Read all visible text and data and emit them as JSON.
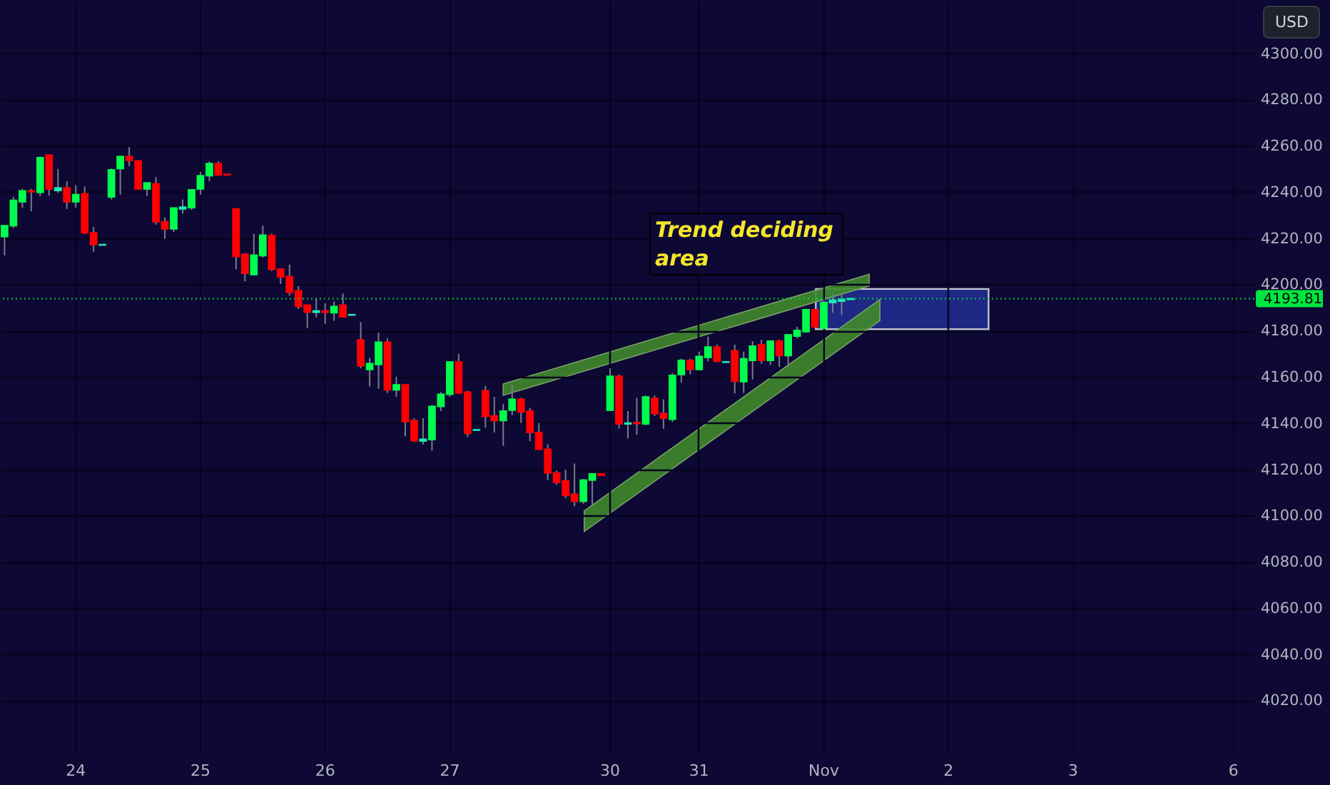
{
  "chart_data": {
    "type": "candlestick",
    "categories": [
      null,
      null,
      null,
      null,
      null,
      null,
      null,
      null,
      "24",
      null,
      null,
      null,
      null,
      null,
      null,
      null,
      null,
      null,
      null,
      null,
      null,
      null,
      "25",
      null,
      null,
      null,
      null,
      null,
      null,
      null,
      null,
      null,
      null,
      null,
      null,
      null,
      "26",
      null,
      null,
      null,
      null,
      null,
      null,
      null,
      null,
      null,
      null,
      null,
      null,
      null,
      "27",
      null,
      null,
      null,
      null,
      null,
      null,
      null,
      null,
      null,
      null,
      null,
      null,
      null,
      null,
      null,
      null,
      null,
      "30",
      null,
      null,
      null,
      null,
      null,
      null,
      null,
      null,
      null,
      "31",
      null,
      null,
      null,
      null,
      null,
      null,
      null,
      null,
      null,
      null,
      null,
      null,
      null,
      "Nov",
      null,
      null,
      null,
      null,
      null,
      null,
      null,
      null,
      null,
      null,
      null,
      null,
      null,
      "2",
      null,
      null,
      null,
      null,
      null,
      null,
      null,
      null,
      null,
      null,
      null,
      null,
      null,
      "3",
      null,
      null,
      null,
      null,
      null,
      null,
      null,
      null,
      null,
      null,
      null,
      null,
      null,
      null,
      null,
      null,
      null,
      "6",
      null,
      null
    ],
    "ohlc": [
      [
        4220.7,
        4225.4,
        4212.5,
        4225.4
      ],
      [
        4225.4,
        4237.8,
        4224.4,
        4236.3
      ],
      [
        4235.7,
        4241.3,
        4233.0,
        4240.4
      ],
      [
        4240.4,
        4241.3,
        4231.6,
        4240.0
      ],
      [
        4239.8,
        4255.3,
        4238.2,
        4254.8
      ],
      [
        4255.9,
        4255.9,
        4238.4,
        4241.3
      ],
      [
        4240.6,
        4249.9,
        4239.6,
        4241.7
      ],
      [
        4241.7,
        4244.6,
        4232.6,
        4235.7
      ],
      [
        4235.7,
        4242.9,
        4233.2,
        4238.8
      ],
      [
        4239.2,
        4242.3,
        4221.7,
        4222.3
      ],
      [
        4222.3,
        4224.8,
        4214.1,
        4217.2
      ],
      [
        4217.2,
        4217.2,
        4217.0,
        4217.0
      ],
      [
        4237.8,
        4250.1,
        4236.7,
        4249.5
      ],
      [
        4250.1,
        4255.3,
        4238.8,
        4255.3
      ],
      [
        4255.3,
        4259.4,
        4251.1,
        4253.6
      ],
      [
        4253.4,
        4253.8,
        4240.9,
        4241.3
      ],
      [
        4241.3,
        4243.9,
        4238.2,
        4243.9
      ],
      [
        4243.5,
        4246.4,
        4225.8,
        4227.1
      ],
      [
        4227.1,
        4228.9,
        4219.7,
        4224.0
      ],
      [
        4224.0,
        4233.0,
        4222.7,
        4233.0
      ],
      [
        4232.6,
        4236.7,
        4230.6,
        4233.4
      ],
      [
        4233.2,
        4240.9,
        4232.2,
        4240.9
      ],
      [
        4241.3,
        4248.7,
        4238.8,
        4247.0
      ],
      [
        4247.0,
        4253.2,
        4244.6,
        4252.2
      ],
      [
        4252.2,
        4253.2,
        4247.0,
        4247.4
      ],
      [
        4247.6,
        4247.6,
        4247.4,
        4247.4
      ],
      [
        4232.6,
        4233.0,
        4206.5,
        4212.0
      ],
      [
        4213.0,
        4213.5,
        4201.3,
        4204.8
      ],
      [
        4204.2,
        4221.9,
        4203.8,
        4212.6
      ],
      [
        4212.4,
        4225.4,
        4211.6,
        4221.3
      ],
      [
        4221.1,
        4221.9,
        4205.8,
        4206.5
      ],
      [
        4206.5,
        4206.9,
        4200.1,
        4203.2
      ],
      [
        4203.4,
        4208.5,
        4195.1,
        4196.6
      ],
      [
        4197.2,
        4199.3,
        4189.4,
        4190.4
      ],
      [
        4191.0,
        4191.0,
        4181.1,
        4187.9
      ],
      [
        4187.9,
        4193.9,
        4185.7,
        4188.5
      ],
      [
        4188.5,
        4191.8,
        4182.8,
        4187.9
      ],
      [
        4187.7,
        4192.5,
        4184.2,
        4190.4
      ],
      [
        4191.0,
        4196.0,
        4185.7,
        4185.9
      ],
      [
        4186.7,
        4186.9,
        4186.5,
        4186.9
      ],
      [
        4176.0,
        4183.6,
        4163.7,
        4164.7
      ],
      [
        4163.2,
        4168.2,
        4155.8,
        4165.7
      ],
      [
        4165.3,
        4179.1,
        4154.8,
        4175.0
      ],
      [
        4175.0,
        4176.6,
        4153.0,
        4154.4
      ],
      [
        4154.4,
        4160.0,
        4151.3,
        4156.5
      ],
      [
        4156.5,
        4156.5,
        4134.2,
        4140.6
      ],
      [
        4141.0,
        4142.1,
        4131.8,
        4132.4
      ],
      [
        4132.2,
        4142.1,
        4130.7,
        4133.0
      ],
      [
        4132.8,
        4147.8,
        4128.1,
        4147.2
      ],
      [
        4147.2,
        4153.4,
        4145.2,
        4152.4
      ],
      [
        4152.4,
        4166.8,
        4151.3,
        4166.4
      ],
      [
        4166.4,
        4169.9,
        4153.0,
        4153.0
      ],
      [
        4153.4,
        4154.0,
        4133.9,
        4135.5
      ],
      [
        4136.9,
        4137.1,
        4136.7,
        4137.1
      ],
      [
        4154.0,
        4156.1,
        4138.0,
        4142.9
      ],
      [
        4143.1,
        4151.3,
        4135.9,
        4141.1
      ],
      [
        4141.1,
        4148.3,
        4130.2,
        4145.2
      ],
      [
        4145.6,
        4156.5,
        4143.5,
        4150.3
      ],
      [
        4150.3,
        4150.9,
        4140.0,
        4144.8
      ],
      [
        4145.2,
        4146.6,
        4132.2,
        4135.9
      ],
      [
        4135.9,
        4140.0,
        4128.7,
        4128.7
      ],
      [
        4128.7,
        4130.8,
        4115.3,
        4118.4
      ],
      [
        4118.4,
        4119.5,
        4113.3,
        4114.3
      ],
      [
        4114.9,
        4119.9,
        4107.5,
        4108.7
      ],
      [
        4109.2,
        4122.5,
        4104.0,
        4106.1
      ],
      [
        4106.1,
        4115.8,
        4105.1,
        4115.3
      ],
      [
        4115.3,
        4118.4,
        4104.0,
        4118.0
      ],
      [
        4118.0,
        4118.0,
        4117.4,
        4117.4
      ],
      [
        4145.6,
        4163.7,
        4145.2,
        4160.2
      ],
      [
        4160.2,
        4161.0,
        4137.6,
        4139.6
      ],
      [
        4139.6,
        4145.2,
        4133.4,
        4140.0
      ],
      [
        4140.2,
        4150.9,
        4134.9,
        4139.8
      ],
      [
        4139.6,
        4151.9,
        4139.0,
        4151.3
      ],
      [
        4150.7,
        4151.9,
        4143.1,
        4144.1
      ],
      [
        4144.1,
        4150.3,
        4137.5,
        4142.1
      ],
      [
        4141.6,
        4161.6,
        4140.4,
        4160.6
      ],
      [
        4161.0,
        4167.8,
        4157.5,
        4167.1
      ],
      [
        4167.1,
        4167.8,
        4161.0,
        4163.2
      ],
      [
        4163.2,
        4170.9,
        4163.0,
        4168.8
      ],
      [
        4168.4,
        4177.4,
        4166.7,
        4172.9
      ],
      [
        4172.9,
        4173.9,
        4166.3,
        4166.7
      ],
      [
        4166.3,
        4166.5,
        4166.1,
        4166.5
      ],
      [
        4171.3,
        4173.9,
        4152.8,
        4158.1
      ],
      [
        4157.9,
        4170.9,
        4153.0,
        4167.8
      ],
      [
        4167.1,
        4175.4,
        4158.9,
        4173.3
      ],
      [
        4173.9,
        4176.0,
        4165.7,
        4167.1
      ],
      [
        4167.1,
        4175.4,
        4165.1,
        4175.4
      ],
      [
        4175.4,
        4176.0,
        4164.3,
        4169.2
      ],
      [
        4169.2,
        4178.1,
        4164.3,
        4178.1
      ],
      [
        4177.6,
        4181.6,
        4176.6,
        4180.1
      ],
      [
        4179.5,
        4189.4,
        4179.1,
        4189.0
      ],
      [
        4189.0,
        4189.4,
        4181.1,
        4181.6
      ],
      [
        4181.1,
        4193.1,
        4180.7,
        4192.1
      ],
      [
        4192.1,
        4195.6,
        4187.7,
        4193.1
      ],
      [
        4192.7,
        4195.6,
        4186.7,
        4193.5
      ],
      [
        4193.5,
        4193.9,
        4193.4,
        4193.81
      ],
      null,
      null,
      null,
      null,
      null,
      null,
      null,
      null,
      null,
      null,
      null,
      null,
      null,
      null,
      null,
      null,
      null,
      null,
      null,
      null,
      null,
      null,
      null,
      null,
      null,
      null,
      null,
      null,
      null,
      null,
      null,
      null,
      null,
      null,
      null,
      null,
      null,
      null,
      null,
      null,
      null,
      null,
      null,
      null,
      null
    ],
    "colors": [
      "#00ff4c",
      "#00ff4c",
      "#00ff4c",
      "#ff0000",
      "#00ff4c",
      "#ff0000",
      "#1de9b6",
      "#ff0000",
      "#00ff4c",
      "#ff0000",
      "#ff0000",
      "#1de9b6",
      "#00ff4c",
      "#00ff4c",
      "#ff0000",
      "#ff0000",
      "#00ff4c",
      "#ff0000",
      "#ff0000",
      "#00ff4c",
      "#1de9b6",
      "#00ff4c",
      "#00ff4c",
      "#00ff4c",
      "#ff0000",
      "#ff0000",
      "#ff0000",
      "#ff0000",
      "#00ff4c",
      "#00ff4c",
      "#ff0000",
      "#ff0000",
      "#ff0000",
      "#ff0000",
      "#ff0000",
      "#1de9b6",
      "#ff0000",
      "#00ff4c",
      "#ff0000",
      "#1de9b6",
      "#ff0000",
      "#00ff4c",
      "#00ff4c",
      "#ff0000",
      "#00ff4c",
      "#ff0000",
      "#ff0000",
      "#1de9b6",
      "#00ff4c",
      "#00ff4c",
      "#00ff4c",
      "#ff0000",
      "#ff0000",
      "#1de9b6",
      "#ff0000",
      "#ff0000",
      "#00ff4c",
      "#00ff4c",
      "#ff0000",
      "#ff0000",
      "#ff0000",
      "#ff0000",
      "#ff0000",
      "#ff0000",
      "#ff0000",
      "#00ff4c",
      "#00ff4c",
      "#ff0000",
      "#00ff4c",
      "#ff0000",
      "#1de9b6",
      "#ff0000",
      "#00ff4c",
      "#ff0000",
      "#ff0000",
      "#00ff4c",
      "#00ff4c",
      "#ff0000",
      "#00ff4c",
      "#00ff4c",
      "#ff0000",
      "#1de9b6",
      "#ff0000",
      "#00ff4c",
      "#00ff4c",
      "#ff0000",
      "#00ff4c",
      "#ff0000",
      "#00ff4c",
      "#00ff4c",
      "#00ff4c",
      "#ff0000",
      "#00ff4c",
      "#1de9b6",
      "#1de9b6",
      "#1de9b6",
      null,
      null,
      null,
      null,
      null,
      null,
      null,
      null,
      null,
      null,
      null,
      null,
      null,
      null,
      null,
      null,
      null,
      null,
      null,
      null,
      null,
      null,
      null,
      null,
      null,
      null,
      null,
      null,
      null,
      null,
      null,
      null,
      null,
      null,
      null,
      null,
      null,
      null,
      null,
      null,
      null,
      null,
      null,
      null,
      null
    ],
    "ylim": [
      3997,
      4323
    ],
    "yticks": [
      {
        "value": 4020,
        "label": "4020.00"
      },
      {
        "value": 4040,
        "label": "4040.00"
      },
      {
        "value": 4060,
        "label": "4060.00"
      },
      {
        "value": 4080,
        "label": "4080.00"
      },
      {
        "value": 4100,
        "label": "4100.00"
      },
      {
        "value": 4120,
        "label": "4120.00"
      },
      {
        "value": 4140,
        "label": "4140.00"
      },
      {
        "value": 4160,
        "label": "4160.00"
      },
      {
        "value": 4180,
        "label": "4180.00"
      },
      {
        "value": 4200,
        "label": "4200.00"
      },
      {
        "value": 4220,
        "label": "4220.00"
      },
      {
        "value": 4240,
        "label": "4240.00"
      },
      {
        "value": 4260,
        "label": "4260.00"
      },
      {
        "value": 4280,
        "label": "4280.00"
      },
      {
        "value": 4300,
        "label": "4300.00"
      }
    ],
    "grid": true,
    "ref_lines": [
      {
        "axis": "y",
        "value": 4193.81,
        "label": "4193.81",
        "color": "#00e640",
        "line_style": "dotted"
      }
    ],
    "annotations": [
      "Trend deciding area",
      "USD"
    ]
  }
}
